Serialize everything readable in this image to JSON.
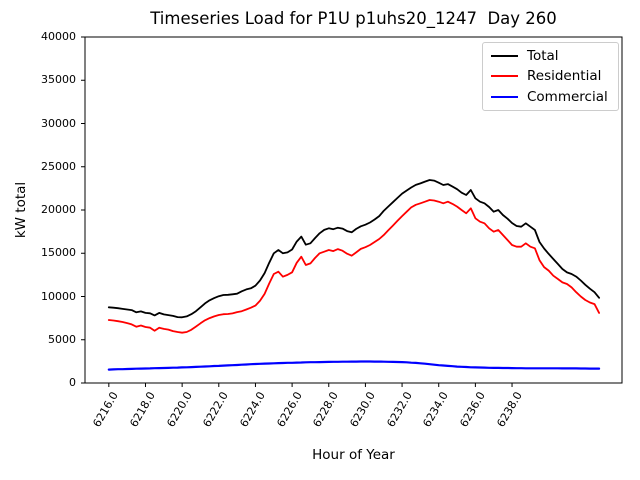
{
  "chart_data": {
    "type": "line",
    "title": "Timeseries Load for P1U p1uhs20_1247  Day 260",
    "xlabel": "Hour of Year",
    "ylabel": "kW total",
    "grid": false,
    "legend_position": "upper right",
    "xlim": [
      6214.7,
      6244.0
    ],
    "ylim": [
      0,
      40000
    ],
    "xticks": [
      6216,
      6218,
      6220,
      6222,
      6224,
      6226,
      6228,
      6230,
      6232,
      6234,
      6236,
      6238
    ],
    "xtick_labels": [
      "6216.0",
      "6218.0",
      "6220.0",
      "6222.0",
      "6224.0",
      "6226.0",
      "6228.0",
      "6230.0",
      "6232.0",
      "6234.0",
      "6236.0",
      "6238.0"
    ],
    "yticks": [
      0,
      5000,
      10000,
      15000,
      20000,
      25000,
      30000,
      35000,
      40000
    ],
    "ytick_labels": [
      "0",
      "5000",
      "10000",
      "15000",
      "20000",
      "25000",
      "30000",
      "35000",
      "40000"
    ],
    "x": {
      "start": 6216.0,
      "step": 0.25,
      "count": 108
    },
    "series": [
      {
        "name": "Total",
        "color": "#000000",
        "values": [
          8750,
          8700,
          8650,
          8570,
          8500,
          8430,
          8170,
          8280,
          8100,
          8060,
          7820,
          8100,
          7930,
          7850,
          7760,
          7620,
          7600,
          7700,
          7950,
          8300,
          8750,
          9200,
          9560,
          9820,
          10030,
          10170,
          10200,
          10260,
          10320,
          10600,
          10820,
          10950,
          11250,
          11850,
          12700,
          13900,
          14990,
          15370,
          14990,
          15100,
          15430,
          16350,
          16920,
          15990,
          16150,
          16750,
          17310,
          17700,
          17890,
          17780,
          17950,
          17850,
          17560,
          17420,
          17820,
          18120,
          18300,
          18550,
          18900,
          19300,
          19900,
          20400,
          20900,
          21400,
          21900,
          22250,
          22600,
          22900,
          23080,
          23280,
          23470,
          23400,
          23160,
          22890,
          23000,
          22700,
          22400,
          22000,
          21730,
          22310,
          21350,
          20960,
          20770,
          20350,
          19800,
          20000,
          19420,
          18990,
          18500,
          18150,
          18070,
          18460,
          18070,
          17690,
          16300,
          15550,
          14920,
          14340,
          13760,
          13180,
          12790,
          12600,
          12300,
          11850,
          11350,
          10900,
          10500,
          9850
        ]
      },
      {
        "name": "Residential",
        "color": "#ff0000",
        "values": [
          7280,
          7230,
          7150,
          7050,
          6930,
          6780,
          6510,
          6650,
          6470,
          6390,
          6050,
          6390,
          6250,
          6170,
          6000,
          5900,
          5820,
          5900,
          6150,
          6520,
          6900,
          7250,
          7500,
          7700,
          7860,
          7950,
          7980,
          8050,
          8200,
          8300,
          8500,
          8700,
          8950,
          9500,
          10300,
          11500,
          12600,
          12870,
          12290,
          12500,
          12800,
          13900,
          14600,
          13640,
          13830,
          14450,
          15000,
          15180,
          15370,
          15250,
          15480,
          15300,
          14950,
          14720,
          15100,
          15500,
          15700,
          15950,
          16300,
          16650,
          17100,
          17650,
          18200,
          18750,
          19300,
          19800,
          20300,
          20600,
          20770,
          20960,
          21160,
          21100,
          20960,
          20770,
          20960,
          20700,
          20390,
          20000,
          19620,
          20200,
          19040,
          18650,
          18460,
          17880,
          17490,
          17690,
          17110,
          16530,
          15950,
          15760,
          15760,
          16150,
          15760,
          15570,
          14200,
          13400,
          12990,
          12400,
          12020,
          11630,
          11440,
          11050,
          10500,
          10000,
          9600,
          9310,
          9120,
          8100
        ]
      },
      {
        "name": "Commercial",
        "color": "#0000ff",
        "values": [
          1550,
          1570,
          1590,
          1600,
          1620,
          1630,
          1650,
          1660,
          1680,
          1690,
          1710,
          1720,
          1730,
          1750,
          1770,
          1780,
          1800,
          1820,
          1840,
          1860,
          1880,
          1910,
          1930,
          1960,
          1980,
          2010,
          2030,
          2060,
          2080,
          2110,
          2140,
          2170,
          2200,
          2220,
          2240,
          2260,
          2280,
          2300,
          2310,
          2330,
          2340,
          2360,
          2370,
          2390,
          2400,
          2410,
          2420,
          2430,
          2440,
          2450,
          2450,
          2460,
          2460,
          2470,
          2470,
          2480,
          2480,
          2480,
          2470,
          2470,
          2460,
          2450,
          2440,
          2430,
          2420,
          2390,
          2350,
          2320,
          2280,
          2230,
          2170,
          2120,
          2060,
          2020,
          1980,
          1940,
          1900,
          1870,
          1850,
          1820,
          1800,
          1790,
          1780,
          1760,
          1750,
          1740,
          1730,
          1730,
          1720,
          1710,
          1710,
          1700,
          1700,
          1700,
          1700,
          1700,
          1700,
          1700,
          1700,
          1690,
          1690,
          1690,
          1690,
          1680,
          1680,
          1670,
          1670,
          1660
        ]
      }
    ]
  }
}
